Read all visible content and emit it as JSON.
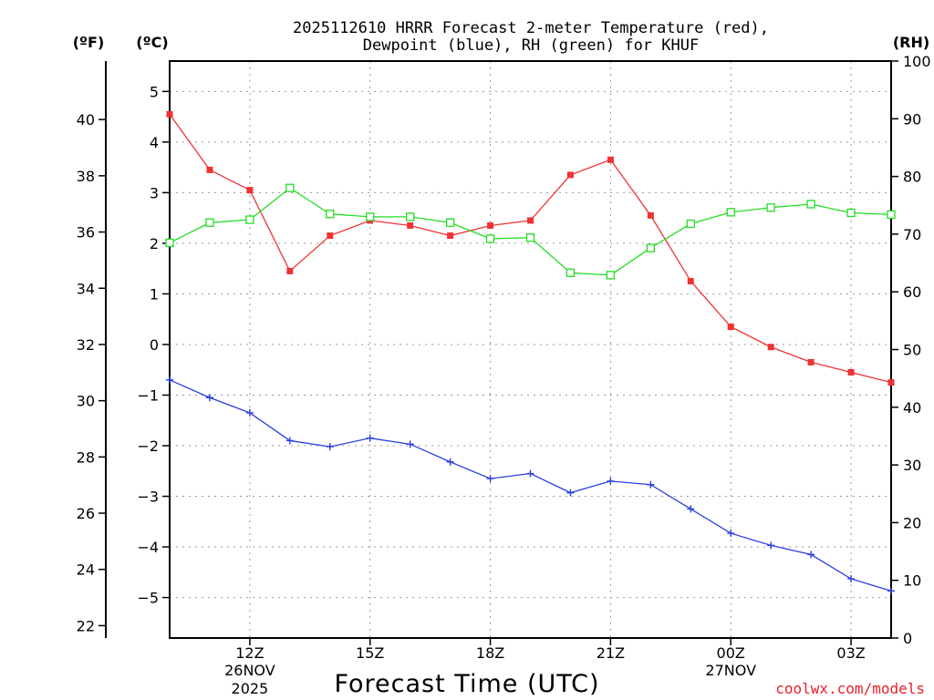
{
  "chart_data": {
    "type": "line",
    "title_line1": "2025112610 HRRR Forecast 2-meter Temperature (red),",
    "title_line2": "Dewpoint (blue), RH (green) for KHUF",
    "xlabel": "Forecast Time (UTC)",
    "credit": "coolwx.com/models",
    "units": {
      "fahrenheit": "(ºF)",
      "celsius": "(ºC)",
      "rh": "(RH)"
    },
    "x": [
      10,
      11,
      12,
      13,
      14,
      15,
      16,
      17,
      18,
      19,
      20,
      21,
      22,
      23,
      24,
      25,
      26,
      27,
      28
    ],
    "xlim": [
      10,
      28
    ],
    "x_ticks": [
      {
        "x": 12,
        "label": "12Z",
        "date": "26NOV",
        "year": "2025"
      },
      {
        "x": 15,
        "label": "15Z"
      },
      {
        "x": 18,
        "label": "18Z"
      },
      {
        "x": 21,
        "label": "21Z"
      },
      {
        "x": 24,
        "label": "00Z",
        "date": "27NOV"
      },
      {
        "x": 27,
        "label": "03Z"
      }
    ],
    "celsius_axis": {
      "ylim": [
        -5.8,
        5.6
      ],
      "ticks": [
        5,
        4,
        3,
        2,
        1,
        0,
        -1,
        -2,
        -3,
        -4,
        -5
      ],
      "tick_labels": [
        "5",
        "4",
        "3",
        "2",
        "1",
        "0",
        "−1",
        "−2",
        "−3",
        "−4",
        "−5"
      ]
    },
    "fahrenheit_axis": {
      "ticks": [
        40,
        38,
        36,
        34,
        32,
        30,
        28,
        26,
        24,
        22
      ],
      "tick_labels": [
        "40",
        "38",
        "36",
        "34",
        "32",
        "30",
        "28",
        "26",
        "24",
        "22"
      ]
    },
    "rh_axis": {
      "ylim": [
        0,
        100
      ],
      "ticks": [
        100,
        90,
        80,
        70,
        60,
        50,
        40,
        30,
        20,
        10,
        0
      ],
      "tick_labels": [
        "100",
        "90",
        "80",
        "70",
        "60",
        "50",
        "40",
        "30",
        "20",
        "10",
        "0"
      ]
    },
    "series": [
      {
        "name": "2-meter Temperature",
        "axis": "celsius",
        "color": "#ee3333",
        "marker": "filled-square",
        "values": [
          4.55,
          3.45,
          3.05,
          1.45,
          2.15,
          2.45,
          2.35,
          2.15,
          2.35,
          2.45,
          3.35,
          3.65,
          2.55,
          1.25,
          0.35,
          -0.05,
          -0.35,
          -0.55,
          -0.75
        ]
      },
      {
        "name": "Dewpoint",
        "axis": "celsius",
        "color": "#2a3fe0",
        "marker": "plus",
        "values": [
          -0.7,
          -1.05,
          -1.35,
          -1.9,
          -2.02,
          -1.85,
          -1.97,
          -2.32,
          -2.65,
          -2.55,
          -2.93,
          -2.7,
          -2.77,
          -3.25,
          -3.73,
          -3.97,
          -4.15,
          -4.63,
          -4.87
        ]
      },
      {
        "name": "RH",
        "axis": "rh",
        "color": "#22dd22",
        "marker": "open-square",
        "values": [
          68.5,
          72.0,
          72.5,
          78.0,
          73.5,
          73.0,
          73.0,
          72.0,
          69.2,
          69.4,
          63.3,
          62.9,
          67.6,
          71.8,
          73.8,
          74.6,
          75.2,
          73.7,
          73.4
        ]
      }
    ]
  }
}
